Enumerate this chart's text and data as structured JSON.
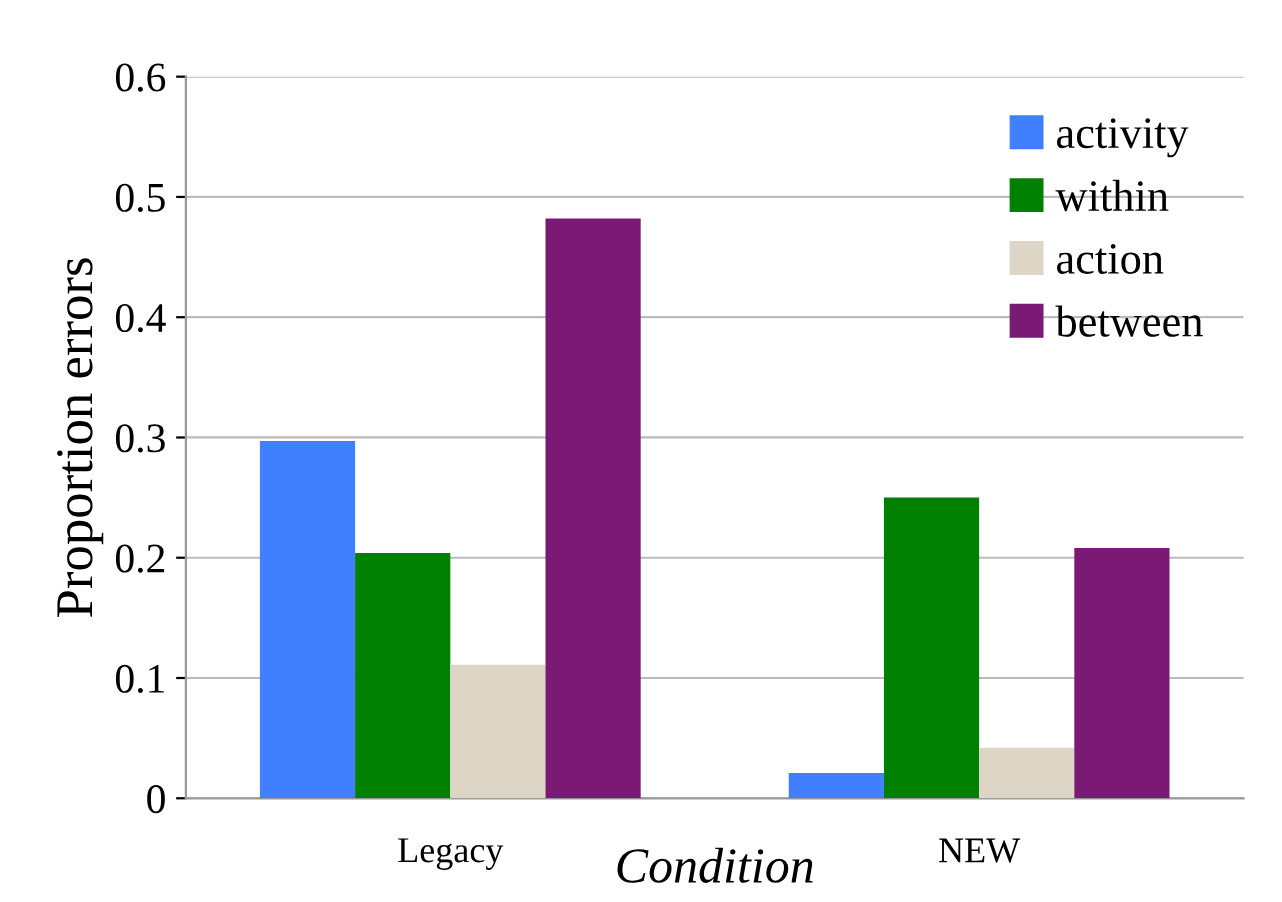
{
  "chart_data": {
    "type": "bar",
    "xlabel": "Condition",
    "ylabel": "Proportion errors",
    "categories": [
      "Legacy",
      "NEW"
    ],
    "series": [
      {
        "name": "activity",
        "color": "#4080ff",
        "values": [
          0.297,
          0.021
        ]
      },
      {
        "name": "within",
        "color": "#008000",
        "values": [
          0.204,
          0.25
        ]
      },
      {
        "name": "action",
        "color": "#ddd5c6",
        "values": [
          0.111,
          0.042
        ]
      },
      {
        "name": "between",
        "color": "#7a1a74",
        "values": [
          0.482,
          0.208
        ]
      }
    ],
    "ylim": [
      0,
      0.6
    ],
    "yticks": [
      0,
      0.1,
      0.2,
      0.3,
      0.4,
      0.5,
      0.6
    ],
    "grid": "y",
    "legend": "top right"
  }
}
